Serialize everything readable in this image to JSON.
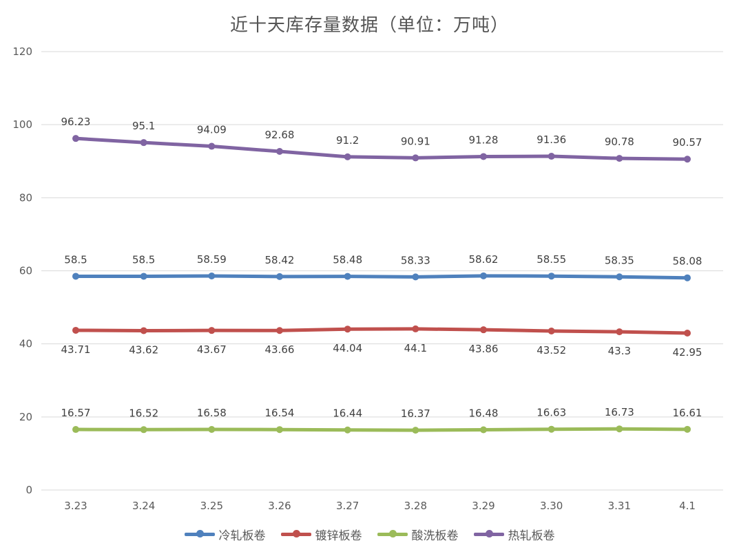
{
  "chart_data": {
    "type": "line",
    "title": "近十天库存量数据（单位：万吨）",
    "categories": [
      "3.23",
      "3.24",
      "3.25",
      "3.26",
      "3.27",
      "3.28",
      "3.29",
      "3.30",
      "3.31",
      "4.1"
    ],
    "ylim": [
      0,
      120
    ],
    "yticks": [
      "0",
      "20",
      "40",
      "60",
      "80",
      "100",
      "120"
    ],
    "grid": true,
    "legend_position": "bottom",
    "series": [
      {
        "name": "冷轧板卷",
        "color": "#4F81BD",
        "values": [
          58.5,
          58.5,
          58.59,
          58.42,
          58.48,
          58.33,
          58.62,
          58.55,
          58.35,
          58.08
        ],
        "labels": [
          "58.5",
          "58.5",
          "58.59",
          "58.42",
          "58.48",
          "58.33",
          "58.62",
          "58.55",
          "58.35",
          "58.08"
        ],
        "label_position": "above"
      },
      {
        "name": "镀锌板卷",
        "color": "#C0504D",
        "values": [
          43.71,
          43.62,
          43.67,
          43.66,
          44.04,
          44.1,
          43.86,
          43.52,
          43.3,
          42.95
        ],
        "labels": [
          "43.71",
          "43.62",
          "43.67",
          "43.66",
          "44.04",
          "44.1",
          "43.86",
          "43.52",
          "43.3",
          "42.95"
        ],
        "label_position": "below"
      },
      {
        "name": "酸洗板卷",
        "color": "#9BBB59",
        "values": [
          16.57,
          16.52,
          16.58,
          16.54,
          16.44,
          16.37,
          16.48,
          16.63,
          16.73,
          16.61
        ],
        "labels": [
          "16.57",
          "16.52",
          "16.58",
          "16.54",
          "16.44",
          "16.37",
          "16.48",
          "16.63",
          "16.73",
          "16.61"
        ],
        "label_position": "above"
      },
      {
        "name": "热轧板卷",
        "color": "#8064A2",
        "values": [
          96.23,
          95.1,
          94.09,
          92.68,
          91.2,
          90.91,
          91.28,
          91.36,
          90.78,
          90.57
        ],
        "labels": [
          "96.23",
          "95.1",
          "94.09",
          "92.68",
          "91.2",
          "90.91",
          "91.28",
          "91.36",
          "90.78",
          "90.57"
        ],
        "label_position": "above"
      }
    ]
  }
}
